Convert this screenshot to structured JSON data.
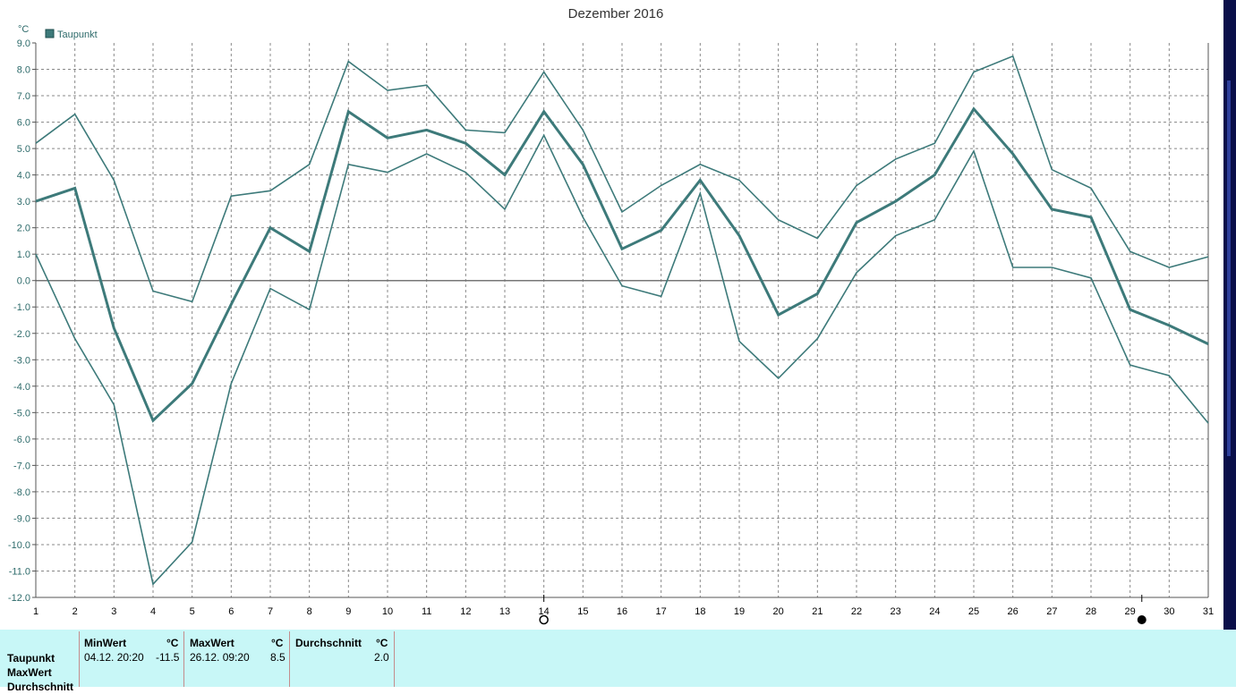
{
  "chart_data": {
    "type": "line",
    "title": "Dezember 2016",
    "unit_label": "°C",
    "legend": [
      "Taupunkt"
    ],
    "legend_placement": "top-left",
    "grid": true,
    "x": [
      1,
      2,
      3,
      4,
      5,
      6,
      7,
      8,
      9,
      10,
      11,
      12,
      13,
      14,
      15,
      16,
      17,
      18,
      19,
      20,
      21,
      22,
      23,
      24,
      25,
      26,
      27,
      28,
      29,
      30,
      31
    ],
    "xlim": [
      1,
      31
    ],
    "ylim": [
      -12,
      9
    ],
    "yticks": [
      9,
      8,
      7,
      6,
      5,
      4,
      3,
      2,
      1,
      0,
      -1,
      -2,
      -3,
      -4,
      -5,
      -6,
      -7,
      -8,
      -9,
      -10,
      -11,
      -12
    ],
    "series": [
      {
        "name": "Taupunkt",
        "values": [
          3.0,
          3.5,
          -1.8,
          -5.3,
          -3.9,
          -0.9,
          2.0,
          1.1,
          6.4,
          5.4,
          5.7,
          5.2,
          4.0,
          6.4,
          4.4,
          1.2,
          1.9,
          3.8,
          1.7,
          -1.3,
          -0.5,
          2.2,
          3.0,
          4.0,
          6.5,
          4.8,
          2.7,
          2.4,
          -1.1,
          -1.7,
          -2.4
        ]
      },
      {
        "values": [
          5.2,
          6.3,
          3.8,
          -0.4,
          -0.8,
          3.2,
          3.4,
          4.4,
          8.3,
          7.2,
          7.4,
          5.7,
          5.6,
          7.9,
          5.7,
          2.6,
          3.6,
          4.4,
          3.8,
          2.3,
          1.6,
          3.6,
          4.6,
          5.2,
          7.9,
          8.5,
          4.2,
          3.5,
          1.1,
          0.5,
          0.9
        ]
      },
      {
        "values": [
          1.0,
          -2.2,
          -4.7,
          -11.5,
          -9.9,
          -3.9,
          -0.3,
          -1.1,
          4.4,
          4.1,
          4.8,
          4.1,
          2.7,
          5.5,
          2.4,
          -0.2,
          -0.6,
          3.3,
          -2.3,
          -3.7,
          -2.2,
          0.3,
          1.7,
          2.3,
          4.9,
          0.5,
          0.5,
          0.1,
          -3.2,
          -3.6,
          -5.4
        ]
      }
    ],
    "markers": {
      "open_circle_day": 14,
      "filled_circle_day": 29.3,
      "tick_days": [
        14,
        29.3
      ]
    },
    "colors": {
      "series": "#3d7a7a",
      "axis": "#555555",
      "grid": "#888888",
      "zero_line": "#777777",
      "text": "#2e6b6b",
      "title": "#333333"
    }
  },
  "stats_table": {
    "row_labels": [
      "Taupunkt",
      "MaxWert",
      "Durchschnitt"
    ],
    "min_header": "MinWert",
    "min_unit": "°C",
    "min_datetime": "04.12.  20:20",
    "min_value": "-11.5",
    "max_header": "MaxWert",
    "max_unit": "°C",
    "max_datetime": "26.12.  09:20",
    "max_value": "8.5",
    "avg_header": "Durchschnitt",
    "avg_unit": "°C",
    "avg_value": "2.0"
  }
}
